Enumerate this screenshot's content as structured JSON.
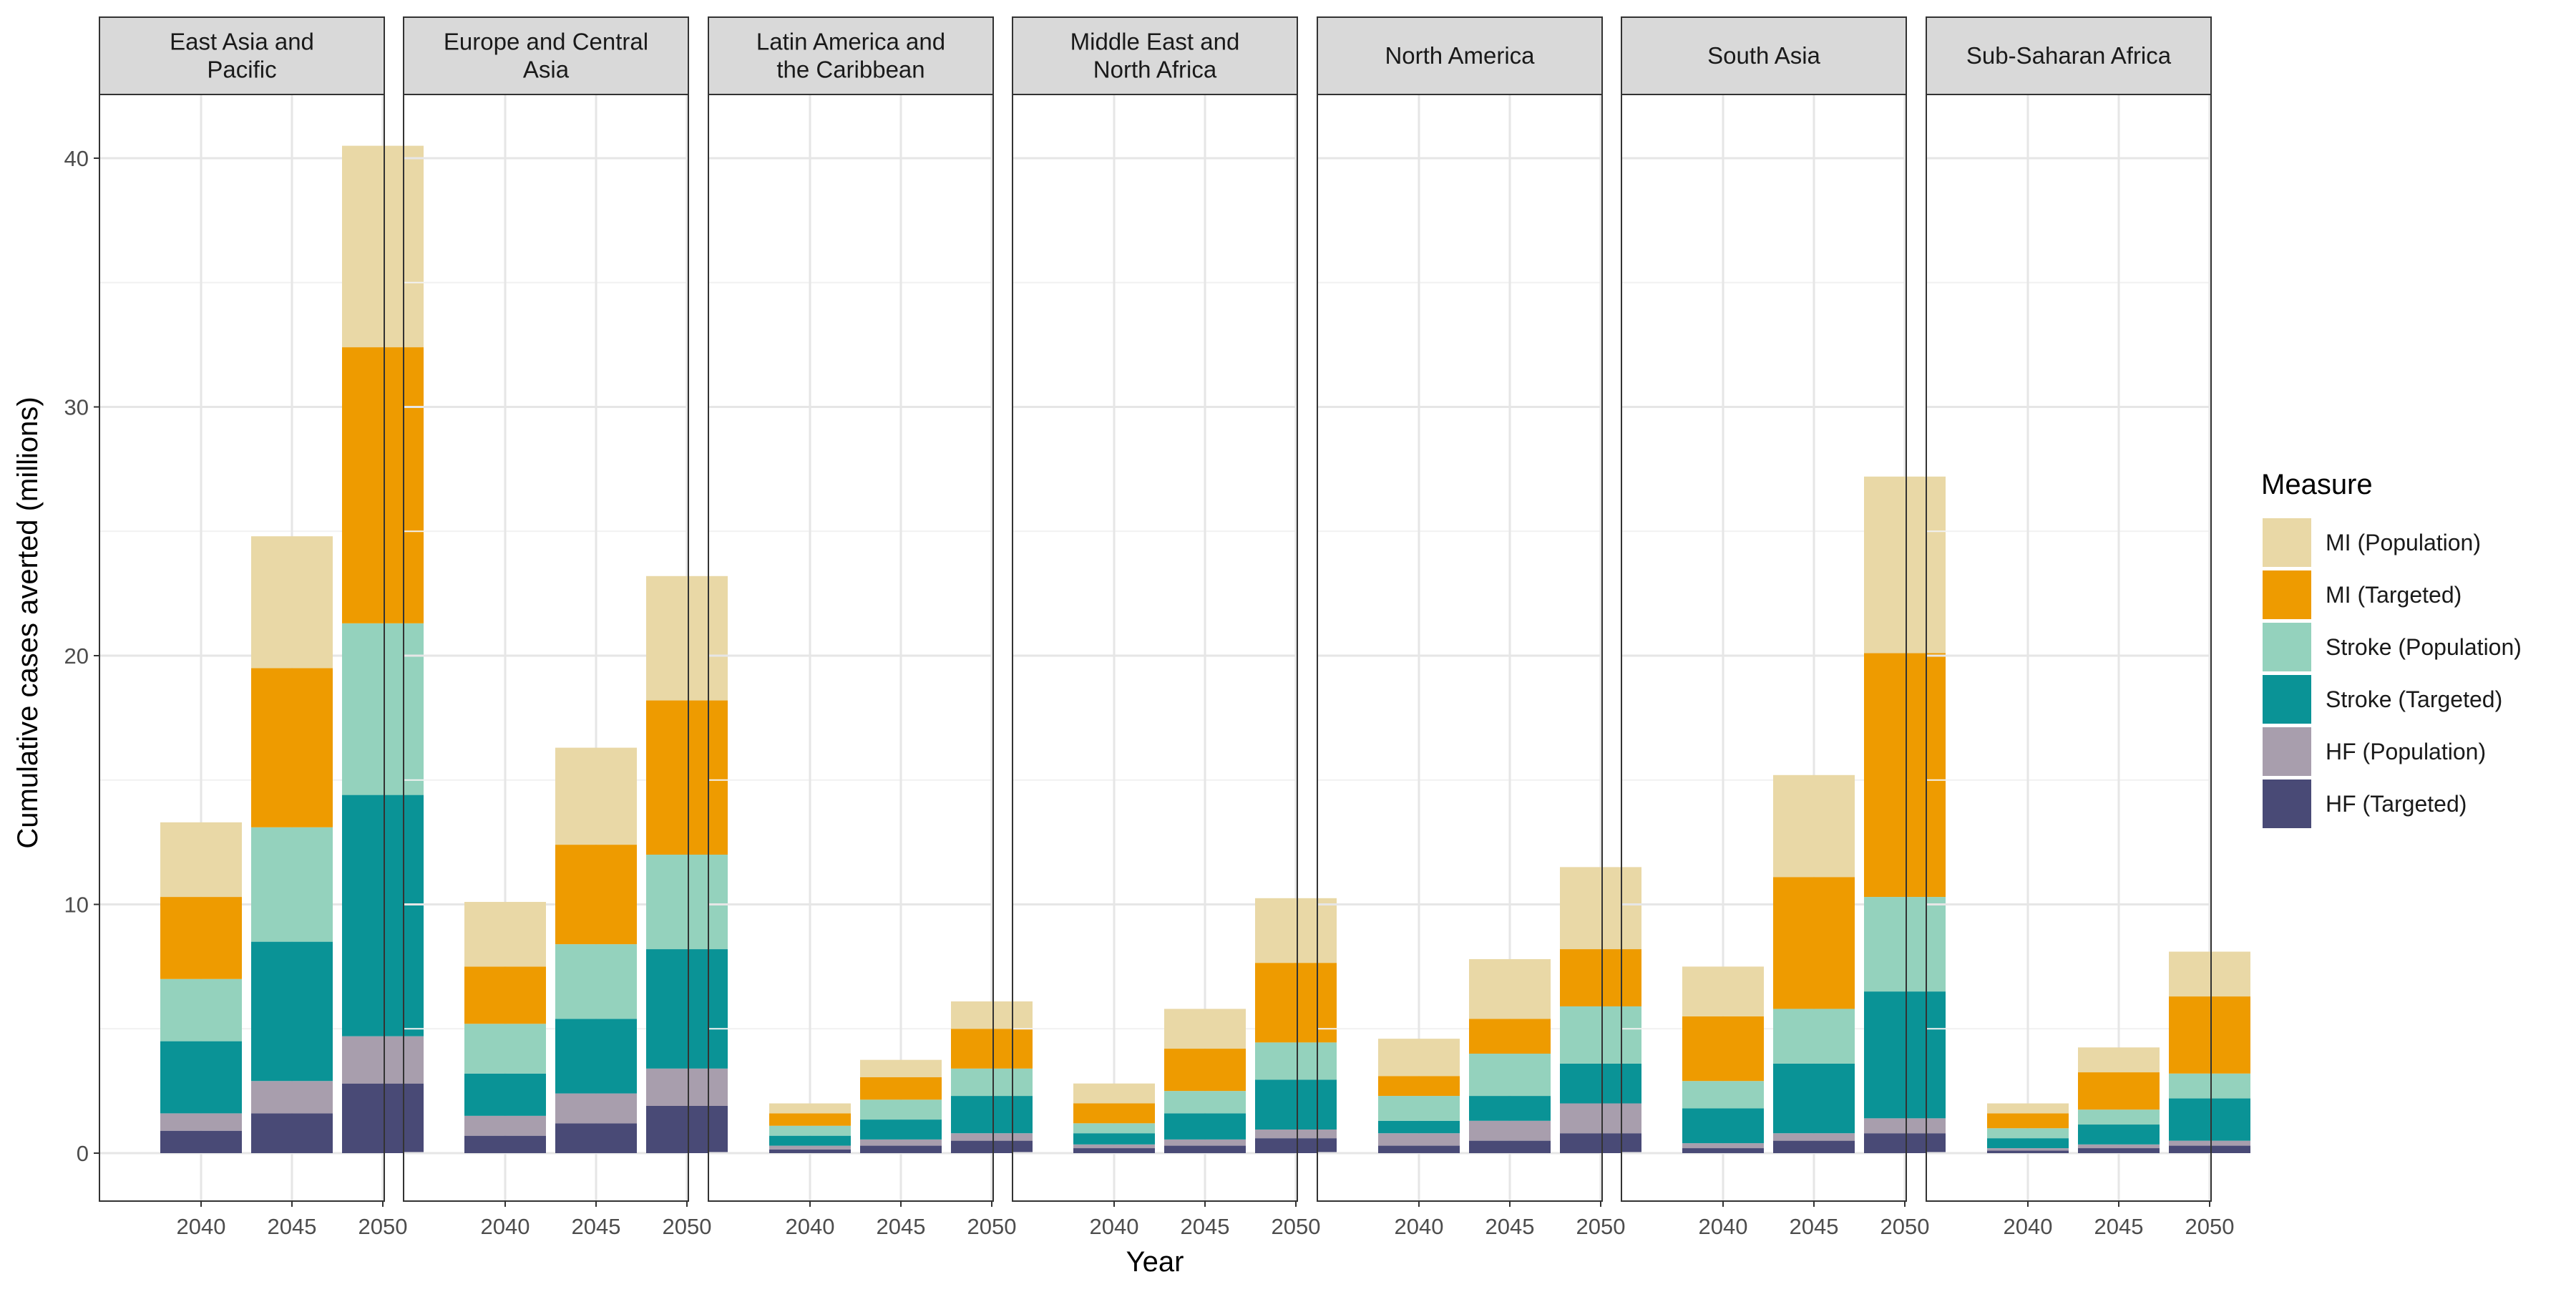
{
  "chart_data": {
    "type": "bar",
    "stacked": true,
    "faceted": true,
    "xlabel": "Year",
    "ylabel": "Cumulative cases averted (millions)",
    "ylim": [
      0,
      42
    ],
    "yticks": [
      0,
      10,
      20,
      30,
      40
    ],
    "grid": true,
    "legend_position": "right",
    "legend_title": "Measure",
    "categories": [
      "2040",
      "2045",
      "2050"
    ],
    "series": [
      {
        "name": "MI (Population)",
        "color": "#E9D8A6"
      },
      {
        "name": "MI (Targeted)",
        "color": "#EE9B00"
      },
      {
        "name": "Stroke (Population)",
        "color": "#94D2BD"
      },
      {
        "name": "Stroke (Targeted)",
        "color": "#0A9396"
      },
      {
        "name": "HF (Population)",
        "color": "#A89EAD"
      },
      {
        "name": "HF (Targeted)",
        "color": "#494A76"
      }
    ],
    "stack_order_bottom_to_top": [
      "HF (Targeted)",
      "HF (Population)",
      "Stroke (Targeted)",
      "Stroke (Population)",
      "MI (Targeted)",
      "MI (Population)"
    ],
    "panels": [
      {
        "title": [
          "East Asia and",
          "Pacific"
        ],
        "values": {
          "HF (Targeted)": [
            0.9,
            1.6,
            2.8
          ],
          "HF (Population)": [
            0.7,
            1.3,
            1.9
          ],
          "Stroke (Targeted)": [
            2.9,
            5.6,
            9.7
          ],
          "Stroke (Population)": [
            2.5,
            4.6,
            6.9
          ],
          "MI (Targeted)": [
            3.3,
            6.4,
            11.1
          ],
          "MI (Population)": [
            3.0,
            5.3,
            8.1
          ]
        }
      },
      {
        "title": [
          "Europe and Central",
          "Asia"
        ],
        "values": {
          "HF (Targeted)": [
            0.7,
            1.2,
            1.9
          ],
          "HF (Population)": [
            0.8,
            1.2,
            1.5
          ],
          "Stroke (Targeted)": [
            1.7,
            3.0,
            4.8
          ],
          "Stroke (Population)": [
            2.0,
            3.0,
            3.8
          ],
          "MI (Targeted)": [
            2.3,
            4.0,
            6.2
          ],
          "MI (Population)": [
            2.6,
            3.9,
            5.0
          ]
        }
      },
      {
        "title": [
          "Latin America and",
          "the Caribbean"
        ],
        "values": {
          "HF (Targeted)": [
            0.15,
            0.3,
            0.5
          ],
          "HF (Population)": [
            0.15,
            0.25,
            0.3
          ],
          "Stroke (Targeted)": [
            0.4,
            0.8,
            1.5
          ],
          "Stroke (Population)": [
            0.4,
            0.8,
            1.1
          ],
          "MI (Targeted)": [
            0.5,
            0.9,
            1.6
          ],
          "MI (Population)": [
            0.4,
            0.7,
            1.1
          ]
        }
      },
      {
        "title": [
          "Middle East and",
          "North Africa"
        ],
        "values": {
          "HF (Targeted)": [
            0.2,
            0.3,
            0.6
          ],
          "HF (Population)": [
            0.15,
            0.25,
            0.35
          ],
          "Stroke (Targeted)": [
            0.45,
            1.05,
            2.0
          ],
          "Stroke (Population)": [
            0.4,
            0.9,
            1.5
          ],
          "MI (Targeted)": [
            0.8,
            1.7,
            3.2
          ],
          "MI (Population)": [
            0.8,
            1.6,
            2.6
          ]
        }
      },
      {
        "title": [
          "North America"
        ],
        "values": {
          "HF (Targeted)": [
            0.3,
            0.5,
            0.8
          ],
          "HF (Population)": [
            0.5,
            0.8,
            1.2
          ],
          "Stroke (Targeted)": [
            0.5,
            1.0,
            1.6
          ],
          "Stroke (Population)": [
            1.0,
            1.7,
            2.3
          ],
          "MI (Targeted)": [
            0.8,
            1.4,
            2.3
          ],
          "MI (Population)": [
            1.5,
            2.4,
            3.3
          ]
        }
      },
      {
        "title": [
          "South Asia"
        ],
        "values": {
          "HF (Targeted)": [
            0.2,
            0.5,
            0.8
          ],
          "HF (Population)": [
            0.2,
            0.3,
            0.6
          ],
          "Stroke (Targeted)": [
            1.4,
            2.8,
            5.1
          ],
          "Stroke (Population)": [
            1.1,
            2.2,
            3.8
          ],
          "MI (Targeted)": [
            2.6,
            5.3,
            9.8
          ],
          "MI (Population)": [
            2.0,
            4.1,
            7.1
          ]
        }
      },
      {
        "title": [
          "Sub-Saharan Africa"
        ],
        "values": {
          "HF (Targeted)": [
            0.1,
            0.2,
            0.3
          ],
          "HF (Population)": [
            0.1,
            0.15,
            0.2
          ],
          "Stroke (Targeted)": [
            0.4,
            0.8,
            1.7
          ],
          "Stroke (Population)": [
            0.4,
            0.6,
            1.0
          ],
          "MI (Targeted)": [
            0.6,
            1.5,
            3.1
          ],
          "MI (Population)": [
            0.4,
            1.0,
            1.8
          ]
        }
      }
    ]
  }
}
